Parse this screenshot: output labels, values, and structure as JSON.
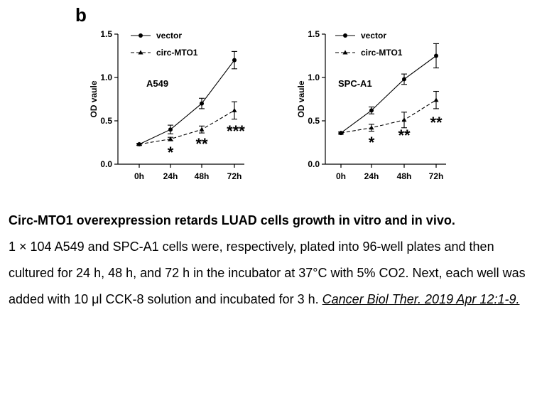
{
  "panel_letter": "b",
  "chart_data": [
    {
      "type": "line",
      "cell_line": "A549",
      "ylabel": "OD vaule",
      "categories": [
        "0h",
        "24h",
        "48h",
        "72h"
      ],
      "ylim": [
        0,
        1.5
      ],
      "yticks": [
        "0.0",
        "0.5",
        "1.0",
        "1.5"
      ],
      "series": [
        {
          "name": "vector",
          "marker": "circle",
          "style": "solid",
          "values": [
            0.23,
            0.4,
            0.7,
            1.2
          ],
          "errors": [
            0.01,
            0.05,
            0.06,
            0.1
          ]
        },
        {
          "name": "circ-MTO1",
          "marker": "triangle",
          "style": "dashed",
          "values": [
            0.23,
            0.29,
            0.4,
            0.62
          ],
          "errors": [
            0.01,
            0.02,
            0.04,
            0.1
          ]
        }
      ],
      "significance": [
        {
          "category": "24h",
          "label": "*"
        },
        {
          "category": "48h",
          "label": "**"
        },
        {
          "category": "72h",
          "label": "***"
        }
      ]
    },
    {
      "type": "line",
      "cell_line": "SPC-A1",
      "ylabel": "OD vaule",
      "categories": [
        "0h",
        "24h",
        "48h",
        "72h"
      ],
      "ylim": [
        0,
        1.5
      ],
      "yticks": [
        "0.0",
        "0.5",
        "1.0",
        "1.5"
      ],
      "series": [
        {
          "name": "vector",
          "marker": "circle",
          "style": "solid",
          "values": [
            0.36,
            0.62,
            0.98,
            1.25
          ],
          "errors": [
            0.01,
            0.04,
            0.06,
            0.14
          ]
        },
        {
          "name": "circ-MTO1",
          "marker": "triangle",
          "style": "dashed",
          "values": [
            0.36,
            0.42,
            0.51,
            0.74
          ],
          "errors": [
            0.01,
            0.04,
            0.09,
            0.1
          ]
        }
      ],
      "significance": [
        {
          "category": "24h",
          "label": "*"
        },
        {
          "category": "48h",
          "label": "**"
        },
        {
          "category": "72h",
          "label": "**"
        }
      ]
    }
  ],
  "caption": {
    "title": "Circ-MTO1 overexpression retards LUAD cells growth in vitro and in vivo.",
    "body": "1 × 104 A549 and SPC-A1 cells were, respectively, plated into 96-well plates and then cultured for 24 h, 48 h, and 72 h in the incubator at 37°C with 5% CO2. Next, each well was added with 10 μl CCK-8 solution and incubated for 3 h. ",
    "citation": "Cancer Biol Ther. 2019 Apr 12:1-9."
  }
}
